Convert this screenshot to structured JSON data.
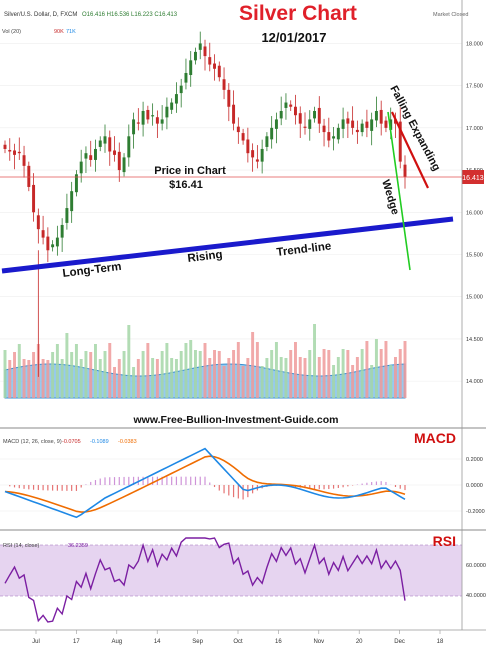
{
  "header": {
    "symbol_line": "Silver/U.S. Dollar, D, FXCM",
    "ohlc": "O16.416 H16.536 L16.223 C16.413",
    "vol_legend_label": "Vol (20)",
    "vol_legend_v1": "90K",
    "vol_legend_v2": "71K",
    "market_status": "Market Closed"
  },
  "title": "Silver Chart",
  "date": "12/01/2017",
  "watermark": "www.Free-Bullion-Investment-Guide.com",
  "annotations": {
    "price_in_chart_line1": "Price in Chart",
    "price_in_chart_line2": "$16.41",
    "falling_expanding": "Falling Expanding",
    "wedge": "Wedge",
    "long_term": "Long-Term",
    "rising": "Rising",
    "trend_line": "Trend-line",
    "macd_label": "MACD",
    "rsi_label": "RSI"
  },
  "macd_legend": {
    "name": "MACD (12, 26, close, 9)",
    "v1": "-0.0705",
    "v2": "-0.1089",
    "v3": "-0.0383"
  },
  "rsi_legend": {
    "name": "RSI (14, close)",
    "v1": "36.2359"
  },
  "price_badge": "16.413",
  "colors": {
    "up": "#2e7d32",
    "down": "#c62828",
    "title": "#e0202a",
    "trendline": "#1a1acc",
    "volume_area": "#4aa8e8",
    "macd_line": "#1e88e5",
    "signal_line": "#ef6c00",
    "rsi_line": "#7b1fa2",
    "rsi_band": "#e6d4f0"
  },
  "chart_data": [
    {
      "type": "candlestick",
      "title": "Silver Chart",
      "y_ticks": [
        "18.000",
        "17.500",
        "17.000",
        "16.500",
        "16.000",
        "15.500",
        "15.000",
        "14.500",
        "14.000"
      ],
      "ylim": [
        13.8,
        18.1
      ],
      "x_ticks": [
        "Jul",
        "17",
        "Aug",
        "14",
        "Sep",
        "Oct",
        "16",
        "Nov",
        "20",
        "Dec",
        "18"
      ],
      "last_close": 16.413,
      "close_series": [
        16.75,
        16.72,
        16.68,
        16.7,
        16.55,
        16.3,
        16.0,
        15.8,
        15.7,
        15.55,
        15.62,
        15.7,
        15.85,
        16.05,
        16.25,
        16.45,
        16.6,
        16.7,
        16.62,
        16.75,
        16.85,
        16.9,
        16.72,
        16.68,
        16.5,
        16.65,
        16.9,
        17.1,
        17.05,
        17.2,
        17.1,
        17.15,
        17.05,
        17.1,
        17.25,
        17.3,
        17.4,
        17.5,
        17.65,
        17.8,
        17.9,
        18.0,
        17.85,
        17.75,
        17.7,
        17.6,
        17.45,
        17.25,
        17.05,
        16.95,
        16.85,
        16.7,
        16.65,
        16.6,
        16.75,
        16.9,
        17.0,
        17.1,
        17.2,
        17.3,
        17.25,
        17.15,
        17.05,
        17.0,
        17.1,
        17.2,
        17.05,
        16.95,
        16.85,
        16.9,
        17.0,
        17.1,
        17.05,
        17.0,
        16.95,
        17.05,
        17.0,
        17.1,
        17.2,
        17.05,
        17.0,
        17.1,
        17.05,
        16.6,
        16.42
      ]
    },
    {
      "type": "bar",
      "title": "Vol (20)",
      "legend_values": [
        "90K",
        "71K"
      ]
    },
    {
      "type": "line",
      "title": "MACD (12, 26, close, 9)",
      "y_ticks": [
        "0.2000",
        "0.0000",
        "-0.2000"
      ],
      "legend_values": [
        "-0.0705",
        "-0.1089",
        "-0.0383"
      ]
    },
    {
      "type": "line",
      "title": "RSI (14, close)",
      "y_ticks": [
        "60.0000",
        "40.0000"
      ],
      "last_value": 36.2359
    }
  ]
}
